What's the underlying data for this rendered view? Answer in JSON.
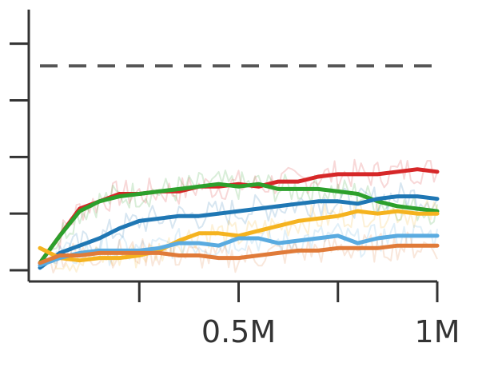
{
  "chart_data": {
    "type": "line",
    "title": "",
    "xlabel": "",
    "ylabel": "",
    "xlim": [
      0,
      1000000
    ],
    "ylim": [
      0,
      1
    ],
    "x_ticks": [
      0,
      250000,
      500000,
      750000,
      1000000
    ],
    "x_tick_labels": [
      "",
      "",
      "0.5M",
      "",
      "1M"
    ],
    "y_ticks": [
      0,
      0.23,
      0.46,
      0.69,
      0.92
    ],
    "grid": false,
    "legend": "none",
    "reference_line": {
      "y": 0.83,
      "style": "dashed",
      "color": "#555555"
    },
    "x": [
      0,
      50000,
      100000,
      150000,
      200000,
      250000,
      300000,
      350000,
      400000,
      450000,
      500000,
      550000,
      600000,
      650000,
      700000,
      750000,
      800000,
      850000,
      900000,
      950000,
      1000000
    ],
    "series": [
      {
        "color": "#d62728",
        "values": [
          0.03,
          0.14,
          0.25,
          0.28,
          0.31,
          0.31,
          0.32,
          0.32,
          0.34,
          0.34,
          0.35,
          0.34,
          0.36,
          0.36,
          0.38,
          0.39,
          0.39,
          0.39,
          0.4,
          0.41,
          0.4
        ]
      },
      {
        "color": "#2ca02c",
        "values": [
          0.03,
          0.14,
          0.24,
          0.28,
          0.3,
          0.31,
          0.32,
          0.33,
          0.34,
          0.35,
          0.34,
          0.35,
          0.33,
          0.33,
          0.33,
          0.32,
          0.31,
          0.28,
          0.26,
          0.25,
          0.24
        ]
      },
      {
        "color": "#1f77b4",
        "values": [
          0.01,
          0.07,
          0.1,
          0.13,
          0.17,
          0.2,
          0.21,
          0.22,
          0.22,
          0.23,
          0.24,
          0.25,
          0.26,
          0.27,
          0.28,
          0.28,
          0.27,
          0.29,
          0.3,
          0.3,
          0.29
        ]
      },
      {
        "color": "#f5b31f",
        "values": [
          0.09,
          0.05,
          0.04,
          0.05,
          0.05,
          0.06,
          0.08,
          0.12,
          0.15,
          0.15,
          0.14,
          0.16,
          0.18,
          0.2,
          0.21,
          0.22,
          0.24,
          0.23,
          0.24,
          0.23,
          0.23
        ]
      },
      {
        "color": "#5aabe0",
        "values": [
          0.02,
          0.05,
          0.07,
          0.08,
          0.08,
          0.08,
          0.09,
          0.11,
          0.11,
          0.1,
          0.13,
          0.13,
          0.11,
          0.12,
          0.13,
          0.14,
          0.11,
          0.13,
          0.14,
          0.14,
          0.14
        ]
      },
      {
        "color": "#e07b39",
        "values": [
          0.03,
          0.06,
          0.06,
          0.07,
          0.07,
          0.07,
          0.07,
          0.06,
          0.06,
          0.05,
          0.05,
          0.06,
          0.07,
          0.08,
          0.08,
          0.09,
          0.09,
          0.09,
          0.1,
          0.1,
          0.1
        ]
      }
    ]
  }
}
